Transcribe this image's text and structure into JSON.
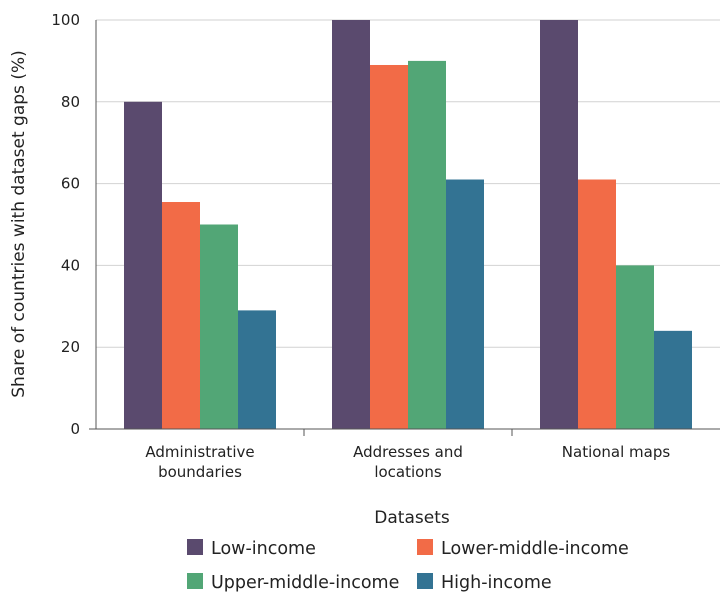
{
  "chart_data": {
    "type": "bar",
    "title": "",
    "xlabel": "Datasets",
    "ylabel": "Share of countries with dataset gaps (%)",
    "ylim": [
      0,
      100
    ],
    "yticks": [
      0,
      20,
      40,
      60,
      80,
      100
    ],
    "grid": true,
    "legend_position": "bottom",
    "categories": [
      [
        "Administrative",
        "boundaries"
      ],
      [
        "Addresses and",
        "locations"
      ],
      [
        "National maps"
      ]
    ],
    "series": [
      {
        "name": "Low-income",
        "color": "#5a4a6e",
        "values": [
          80,
          100,
          100
        ]
      },
      {
        "name": "Lower-middle-income",
        "color": "#f26b47",
        "values": [
          55.5,
          89,
          61
        ]
      },
      {
        "name": "Upper-middle-income",
        "color": "#52a676",
        "values": [
          50,
          90,
          40
        ]
      },
      {
        "name": "High-income",
        "color": "#337393",
        "values": [
          29,
          61,
          24
        ]
      }
    ]
  }
}
